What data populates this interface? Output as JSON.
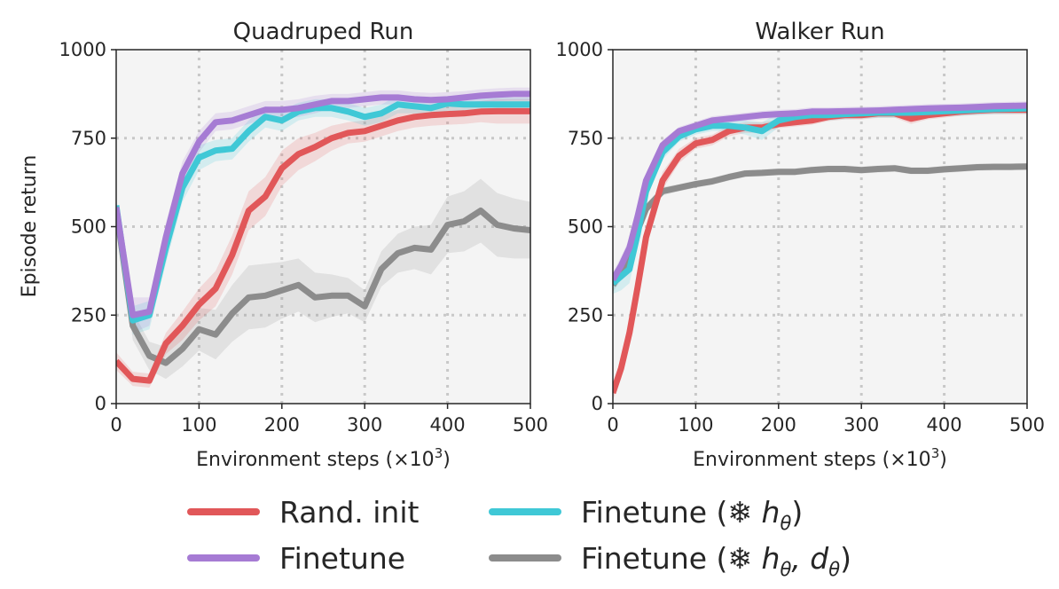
{
  "legend": [
    {
      "label": "Rand. init",
      "color": "#e15759"
    },
    {
      "label": "Finetune",
      "color": "#a67bd4"
    },
    {
      "label": "Finetune (❄ ",
      "math": "h",
      "sub": "θ",
      "tail": ")",
      "color": "#3fc8d6"
    },
    {
      "label": "Finetune (❄ ",
      "math": "h",
      "sub": "θ",
      "math2": ", d",
      "sub2": "θ",
      "tail": ")",
      "color": "#8c8c8c"
    }
  ],
  "ylabel": "Episode return",
  "chart_data": [
    {
      "type": "line",
      "title": "Quadruped Run",
      "xlabel": "Environment steps (×10",
      "xlabel_sup": "3",
      "xlabel_tail": ")",
      "ylabel": "Episode return",
      "xlim": [
        0,
        500
      ],
      "ylim": [
        0,
        1000
      ],
      "xticks": [
        0,
        100,
        200,
        300,
        400,
        500
      ],
      "yticks": [
        0,
        250,
        500,
        750,
        1000
      ],
      "grid": true,
      "series": [
        {
          "name": "Rand. init",
          "color": "#e15759",
          "x": [
            0,
            20,
            40,
            60,
            80,
            100,
            120,
            140,
            160,
            180,
            200,
            220,
            240,
            260,
            280,
            300,
            320,
            340,
            360,
            380,
            400,
            420,
            440,
            460,
            480,
            500
          ],
          "y": [
            120,
            70,
            65,
            170,
            220,
            280,
            325,
            420,
            545,
            585,
            665,
            705,
            725,
            750,
            765,
            770,
            785,
            800,
            810,
            815,
            818,
            820,
            825,
            826,
            826,
            826
          ],
          "band": [
            25,
            20,
            20,
            30,
            40,
            45,
            50,
            55,
            55,
            55,
            50,
            45,
            40,
            35,
            30,
            30,
            30,
            30,
            30,
            30,
            30,
            30,
            30,
            35,
            35,
            35
          ]
        },
        {
          "name": "Finetune",
          "color": "#a67bd4",
          "x": [
            0,
            20,
            40,
            60,
            80,
            100,
            120,
            140,
            160,
            180,
            200,
            220,
            240,
            260,
            280,
            300,
            320,
            340,
            360,
            380,
            400,
            420,
            440,
            460,
            480,
            500
          ],
          "y": [
            555,
            250,
            260,
            470,
            650,
            740,
            795,
            800,
            815,
            830,
            830,
            835,
            845,
            855,
            855,
            860,
            865,
            865,
            860,
            858,
            860,
            865,
            870,
            873,
            875,
            875
          ],
          "band": [
            20,
            50,
            40,
            40,
            35,
            30,
            25,
            25,
            25,
            25,
            25,
            25,
            25,
            20,
            20,
            20,
            20,
            20,
            20,
            20,
            20,
            18,
            18,
            18,
            18,
            18
          ]
        },
        {
          "name": "Finetune (❄ hθ)",
          "color": "#3fc8d6",
          "x": [
            0,
            20,
            40,
            60,
            80,
            100,
            120,
            140,
            160,
            180,
            200,
            220,
            240,
            260,
            280,
            300,
            320,
            340,
            360,
            380,
            400,
            420,
            440,
            460,
            480,
            500
          ],
          "y": [
            560,
            235,
            250,
            440,
            610,
            695,
            715,
            720,
            770,
            810,
            800,
            825,
            835,
            835,
            825,
            810,
            820,
            845,
            840,
            835,
            848,
            845,
            845,
            845,
            845,
            845
          ],
          "band": [
            20,
            40,
            40,
            45,
            40,
            35,
            30,
            30,
            30,
            30,
            30,
            25,
            25,
            25,
            25,
            25,
            25,
            25,
            20,
            20,
            20,
            20,
            20,
            20,
            20,
            20
          ]
        },
        {
          "name": "Finetune (❄ hθ, dθ)",
          "color": "#8c8c8c",
          "x": [
            0,
            20,
            40,
            60,
            80,
            100,
            120,
            140,
            160,
            180,
            200,
            220,
            240,
            260,
            280,
            300,
            320,
            340,
            360,
            380,
            400,
            420,
            440,
            460,
            480,
            500
          ],
          "y": [
            550,
            220,
            135,
            115,
            155,
            210,
            195,
            255,
            300,
            305,
            320,
            335,
            300,
            305,
            305,
            275,
            380,
            425,
            440,
            435,
            505,
            515,
            545,
            505,
            495,
            490
          ],
          "band": [
            20,
            40,
            40,
            45,
            50,
            60,
            70,
            80,
            90,
            90,
            80,
            75,
            70,
            60,
            50,
            45,
            50,
            55,
            60,
            70,
            80,
            85,
            90,
            90,
            85,
            80
          ]
        }
      ]
    },
    {
      "type": "line",
      "title": "Walker Run",
      "xlabel": "Environment steps (×10",
      "xlabel_sup": "3",
      "xlabel_tail": ")",
      "xlim": [
        0,
        500
      ],
      "ylim": [
        0,
        1000
      ],
      "xticks": [
        0,
        100,
        200,
        300,
        400,
        500
      ],
      "yticks": [
        0,
        250,
        500,
        750,
        1000
      ],
      "grid": true,
      "series": [
        {
          "name": "Rand. init",
          "color": "#e15759",
          "x": [
            0,
            10,
            20,
            30,
            40,
            60,
            80,
            100,
            120,
            140,
            160,
            180,
            200,
            220,
            240,
            260,
            280,
            300,
            320,
            340,
            360,
            380,
            400,
            420,
            440,
            460,
            480,
            500
          ],
          "y": [
            30,
            100,
            200,
            330,
            470,
            630,
            700,
            735,
            745,
            770,
            780,
            780,
            790,
            795,
            800,
            810,
            815,
            815,
            820,
            820,
            805,
            815,
            820,
            825,
            828,
            830,
            830,
            830
          ],
          "band": [
            20,
            30,
            35,
            35,
            30,
            25,
            20,
            15,
            15,
            15,
            15,
            15,
            12,
            12,
            12,
            12,
            12,
            12,
            12,
            12,
            15,
            12,
            12,
            12,
            12,
            12,
            12,
            12
          ]
        },
        {
          "name": "Finetune",
          "color": "#a67bd4",
          "x": [
            0,
            10,
            20,
            30,
            40,
            60,
            80,
            100,
            120,
            140,
            160,
            180,
            200,
            220,
            240,
            260,
            280,
            300,
            320,
            340,
            360,
            380,
            400,
            420,
            440,
            460,
            480,
            500
          ],
          "y": [
            350,
            390,
            440,
            530,
            630,
            730,
            770,
            785,
            800,
            805,
            810,
            815,
            818,
            820,
            825,
            825,
            826,
            827,
            828,
            830,
            832,
            834,
            835,
            836,
            838,
            840,
            841,
            842
          ],
          "band": [
            20,
            25,
            25,
            20,
            15,
            15,
            12,
            12,
            12,
            12,
            12,
            12,
            12,
            12,
            12,
            12,
            12,
            12,
            12,
            12,
            12,
            12,
            12,
            12,
            12,
            12,
            12,
            12
          ]
        },
        {
          "name": "Finetune (❄ hθ)",
          "color": "#3fc8d6",
          "x": [
            0,
            10,
            20,
            30,
            40,
            60,
            80,
            100,
            120,
            140,
            160,
            180,
            200,
            220,
            240,
            260,
            280,
            300,
            320,
            340,
            360,
            380,
            400,
            420,
            440,
            460,
            480,
            500
          ],
          "y": [
            340,
            360,
            380,
            480,
            600,
            710,
            755,
            775,
            785,
            785,
            780,
            770,
            800,
            810,
            815,
            815,
            818,
            820,
            822,
            822,
            822,
            824,
            826,
            828,
            830,
            832,
            833,
            834
          ],
          "band": [
            30,
            40,
            40,
            35,
            25,
            20,
            15,
            15,
            15,
            15,
            20,
            25,
            20,
            15,
            15,
            15,
            15,
            15,
            15,
            15,
            15,
            15,
            15,
            15,
            15,
            15,
            15,
            15
          ]
        },
        {
          "name": "Finetune (❄ hθ, dθ)",
          "color": "#8c8c8c",
          "x": [
            0,
            10,
            20,
            30,
            40,
            60,
            80,
            100,
            120,
            140,
            160,
            180,
            200,
            220,
            240,
            260,
            280,
            300,
            320,
            340,
            360,
            380,
            400,
            420,
            440,
            460,
            480,
            500
          ],
          "y": [
            335,
            370,
            420,
            490,
            550,
            600,
            610,
            620,
            628,
            640,
            650,
            652,
            655,
            655,
            660,
            663,
            663,
            660,
            663,
            665,
            658,
            658,
            662,
            665,
            668,
            669,
            669,
            670
          ],
          "band": [
            20,
            20,
            20,
            20,
            15,
            12,
            10,
            10,
            10,
            10,
            10,
            10,
            10,
            10,
            10,
            10,
            10,
            10,
            10,
            10,
            10,
            10,
            10,
            10,
            10,
            10,
            10,
            10
          ]
        }
      ]
    }
  ]
}
